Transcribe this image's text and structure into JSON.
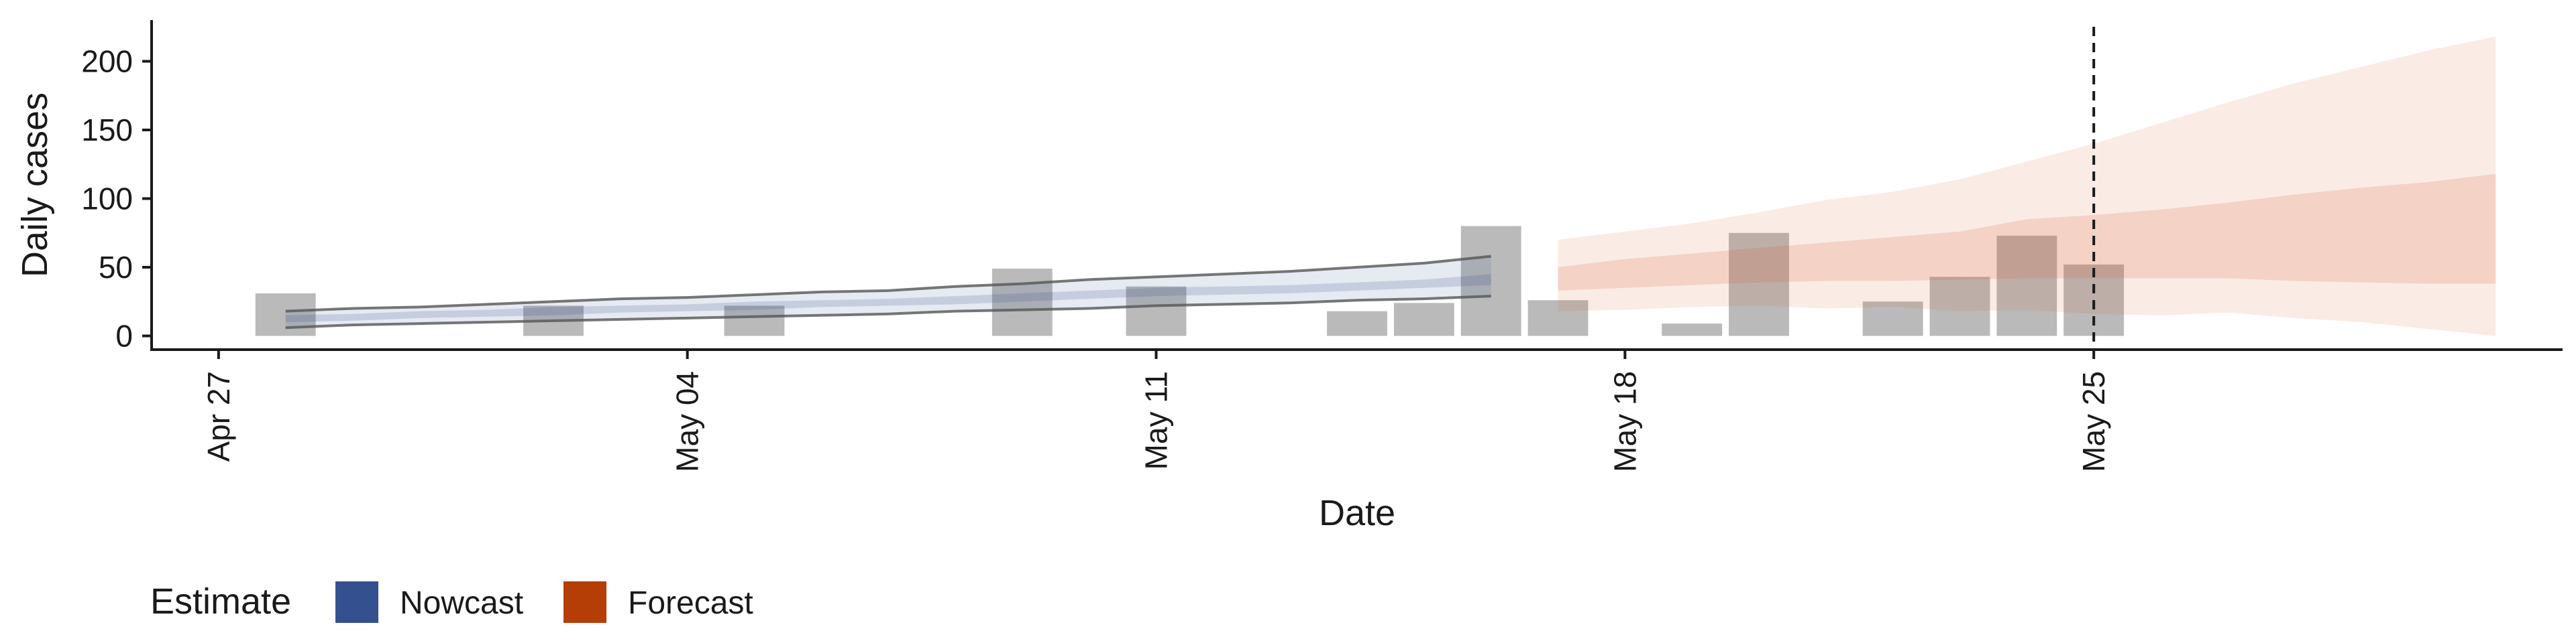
{
  "chart_data": {
    "type": "bar",
    "xlabel": "Date",
    "ylabel": "Daily cases",
    "ylim": [
      -10,
      230
    ],
    "yticks": [
      0,
      50,
      100,
      150,
      200
    ],
    "xlim": [
      "2026-04-26",
      "2026-06-01"
    ],
    "xticks": [
      {
        "date": "2026-04-27",
        "label": "Apr 27"
      },
      {
        "date": "2026-05-04",
        "label": "May 04"
      },
      {
        "date": "2026-05-11",
        "label": "May 11"
      },
      {
        "date": "2026-05-18",
        "label": "May 18"
      },
      {
        "date": "2026-05-25",
        "label": "May 25"
      }
    ],
    "reference_line": {
      "date": "2026-05-25",
      "style": "dashed"
    },
    "observed_cases": [
      {
        "date": "2026-04-28",
        "value": 31
      },
      {
        "date": "2026-05-02",
        "value": 22
      },
      {
        "date": "2026-05-05",
        "value": 22
      },
      {
        "date": "2026-05-09",
        "value": 49
      },
      {
        "date": "2026-05-11",
        "value": 36
      },
      {
        "date": "2026-05-14",
        "value": 18
      },
      {
        "date": "2026-05-15",
        "value": 24
      },
      {
        "date": "2026-05-16",
        "value": 80
      },
      {
        "date": "2026-05-17",
        "value": 26
      },
      {
        "date": "2026-05-19",
        "value": 9
      },
      {
        "date": "2026-05-20",
        "value": 75
      },
      {
        "date": "2026-05-22",
        "value": 25
      },
      {
        "date": "2026-05-23",
        "value": 43
      },
      {
        "date": "2026-05-24",
        "value": 73
      },
      {
        "date": "2026-05-25",
        "value": 52
      }
    ],
    "nowcast": {
      "dates": [
        "2026-04-28",
        "2026-04-29",
        "2026-04-30",
        "2026-05-01",
        "2026-05-02",
        "2026-05-03",
        "2026-05-04",
        "2026-05-05",
        "2026-05-06",
        "2026-05-07",
        "2026-05-08",
        "2026-05-09",
        "2026-05-10",
        "2026-05-11",
        "2026-05-12",
        "2026-05-13",
        "2026-05-14",
        "2026-05-15",
        "2026-05-16"
      ],
      "outer_lower": [
        6,
        8,
        9,
        10,
        11,
        12,
        13,
        14,
        15,
        16,
        18,
        19,
        20,
        22,
        23,
        24,
        26,
        27,
        29
      ],
      "outer_upper": [
        18,
        20,
        21,
        23,
        25,
        27,
        28,
        30,
        32,
        33,
        36,
        38,
        41,
        43,
        45,
        47,
        50,
        53,
        58
      ],
      "inner_lower": [
        10,
        11,
        13,
        14,
        15,
        17,
        18,
        19,
        21,
        22,
        23,
        25,
        27,
        29,
        30,
        31,
        33,
        35,
        37
      ],
      "inner_upper": [
        15,
        16,
        18,
        19,
        21,
        22,
        23,
        25,
        26,
        27,
        29,
        31,
        33,
        35,
        36,
        37,
        39,
        41,
        45
      ]
    },
    "forecast": {
      "dates": [
        "2026-05-17",
        "2026-05-18",
        "2026-05-19",
        "2026-05-20",
        "2026-05-21",
        "2026-05-22",
        "2026-05-23",
        "2026-05-24",
        "2026-05-25",
        "2026-05-26",
        "2026-05-27",
        "2026-05-28",
        "2026-05-29",
        "2026-05-30",
        "2026-05-31"
      ],
      "outer_lower": [
        18,
        19,
        21,
        22,
        20,
        21,
        18,
        19,
        16,
        15,
        17,
        13,
        10,
        5,
        0
      ],
      "outer_upper": [
        70,
        76,
        82,
        90,
        99,
        105,
        114,
        127,
        140,
        155,
        170,
        184,
        196,
        208,
        218
      ],
      "inner_lower": [
        33,
        35,
        37,
        39,
        40,
        40,
        41,
        42,
        42,
        42,
        42,
        40,
        39,
        38,
        38
      ],
      "inner_upper": [
        50,
        56,
        60,
        64,
        68,
        72,
        76,
        85,
        88,
        92,
        97,
        103,
        108,
        112,
        118
      ]
    },
    "legend": {
      "title": "Estimate",
      "position": "bottom-left",
      "items": [
        {
          "label": "Nowcast",
          "color": "#34508F"
        },
        {
          "label": "Forecast",
          "color": "#B53D06"
        }
      ]
    },
    "colors": {
      "bars": "#A3A3A3",
      "nowcast_band": "#34508F",
      "forecast_band": "#D45B28",
      "nowcast_outline": "#555555",
      "axis": "#1a1a1a"
    },
    "grid": false
  }
}
